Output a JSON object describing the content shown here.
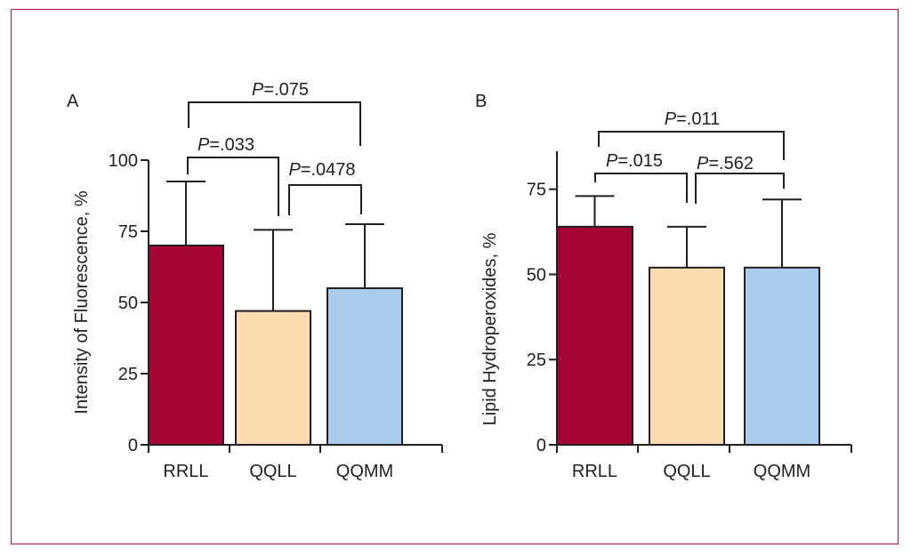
{
  "chart_data": [
    {
      "type": "bar",
      "panel_label": "A",
      "title": "",
      "xlabel": "",
      "ylabel": "Intensity of Fluorescence, %",
      "ylim": [
        0,
        100
      ],
      "yticks": [
        "0",
        "25",
        "50",
        "75",
        "100"
      ],
      "categories": [
        "RRLL",
        "QQLL",
        "QQMM"
      ],
      "values": [
        70,
        47,
        55
      ],
      "error_upper": [
        92.5,
        75.5,
        77.5
      ],
      "grid": false,
      "annotations": [
        {
          "label_prefix": "P",
          "label_value": "=.075",
          "from": "RRLL",
          "to": "QQMM"
        },
        {
          "label_prefix": "P",
          "label_value": "=.033",
          "from": "RRLL",
          "to": "QQLL"
        },
        {
          "label_prefix": "P",
          "label_value": "=.0478",
          "from": "QQLL",
          "to": "QQMM"
        }
      ]
    },
    {
      "type": "bar",
      "panel_label": "B",
      "title": "",
      "xlabel": "",
      "ylabel": "Lipid Hydroperoxides, %",
      "ylim": [
        0,
        75
      ],
      "yticks": [
        "0",
        "25",
        "50",
        "75"
      ],
      "categories": [
        "RRLL",
        "QQLL",
        "QQMM"
      ],
      "values": [
        64,
        52,
        52
      ],
      "error_upper": [
        73,
        64,
        72
      ],
      "grid": false,
      "annotations": [
        {
          "label_prefix": "P",
          "label_value": "=.011",
          "from": "RRLL",
          "to": "QQMM"
        },
        {
          "label_prefix": "P",
          "label_value": "=.015",
          "from": "RRLL",
          "to": "QQLL"
        },
        {
          "label_prefix": "P",
          "label_value": "=.562",
          "from": "QQLL",
          "to": "QQMM"
        }
      ]
    }
  ],
  "colors": {
    "bars": [
      "#a50534",
      "#fddbb0",
      "#abcbed"
    ],
    "frame": "#a5154a",
    "ink": "#231f20"
  }
}
